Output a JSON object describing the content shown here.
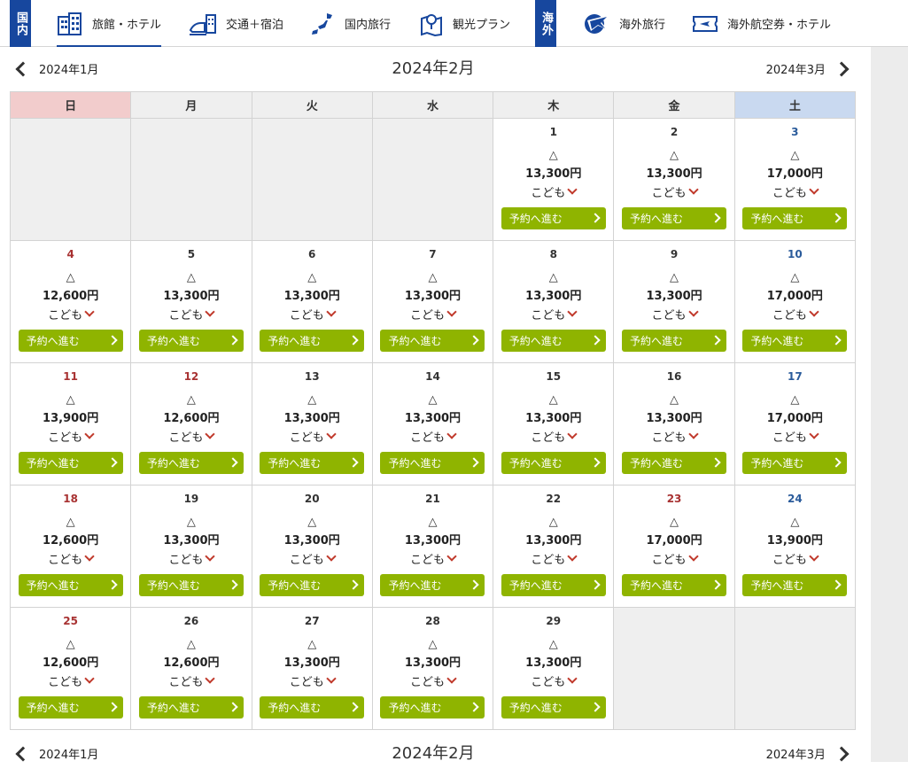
{
  "nav": {
    "domestic_badge": "国内",
    "overseas_badge": "海外",
    "items": [
      {
        "label": "旅館・ホテル",
        "icon": "building-icon",
        "active": true
      },
      {
        "label": "交通＋宿泊",
        "icon": "train-hotel-icon",
        "active": false
      },
      {
        "label": "国内旅行",
        "icon": "japan-map-icon",
        "active": false
      },
      {
        "label": "観光プラン",
        "icon": "map-pin-icon",
        "active": false
      },
      {
        "label": "海外旅行",
        "icon": "globe-plane-icon",
        "active": false
      },
      {
        "label": "海外航空券・ホテル",
        "icon": "ticket-plane-icon",
        "active": false
      }
    ]
  },
  "month_nav": {
    "prev_label": "2024年1月",
    "current_label": "2024年2月",
    "next_label": "2024年3月"
  },
  "weekdays": [
    "日",
    "月",
    "火",
    "水",
    "木",
    "金",
    "土"
  ],
  "labels": {
    "availability_symbol": "△",
    "child_label": "こども",
    "book_label": "予約へ進む"
  },
  "colors": {
    "brand_blue": "#17479e",
    "book_green": "#8fb400",
    "sunday_header": "#f2cccc",
    "saturday_header": "#c9d9f0",
    "holiday_red": "#a83232",
    "saturday_blue": "#2a5b9b"
  },
  "weeks": [
    [
      null,
      null,
      null,
      null,
      {
        "day": "1",
        "price": "13,300円"
      },
      {
        "day": "2",
        "price": "13,300円"
      },
      {
        "day": "3",
        "price": "17,000円"
      }
    ],
    [
      {
        "day": "4",
        "price": "12,600円"
      },
      {
        "day": "5",
        "price": "13,300円"
      },
      {
        "day": "6",
        "price": "13,300円"
      },
      {
        "day": "7",
        "price": "13,300円"
      },
      {
        "day": "8",
        "price": "13,300円"
      },
      {
        "day": "9",
        "price": "13,300円"
      },
      {
        "day": "10",
        "price": "17,000円"
      }
    ],
    [
      {
        "day": "11",
        "price": "13,900円"
      },
      {
        "day": "12",
        "price": "12,600円",
        "holiday": true
      },
      {
        "day": "13",
        "price": "13,300円"
      },
      {
        "day": "14",
        "price": "13,300円"
      },
      {
        "day": "15",
        "price": "13,300円"
      },
      {
        "day": "16",
        "price": "13,300円"
      },
      {
        "day": "17",
        "price": "17,000円"
      }
    ],
    [
      {
        "day": "18",
        "price": "12,600円"
      },
      {
        "day": "19",
        "price": "13,300円"
      },
      {
        "day": "20",
        "price": "13,300円"
      },
      {
        "day": "21",
        "price": "13,300円"
      },
      {
        "day": "22",
        "price": "13,300円"
      },
      {
        "day": "23",
        "price": "17,000円",
        "holiday": true
      },
      {
        "day": "24",
        "price": "13,900円"
      }
    ],
    [
      {
        "day": "25",
        "price": "12,600円"
      },
      {
        "day": "26",
        "price": "12,600円"
      },
      {
        "day": "27",
        "price": "13,300円"
      },
      {
        "day": "28",
        "price": "13,300円"
      },
      {
        "day": "29",
        "price": "13,300円"
      },
      null,
      null
    ]
  ]
}
